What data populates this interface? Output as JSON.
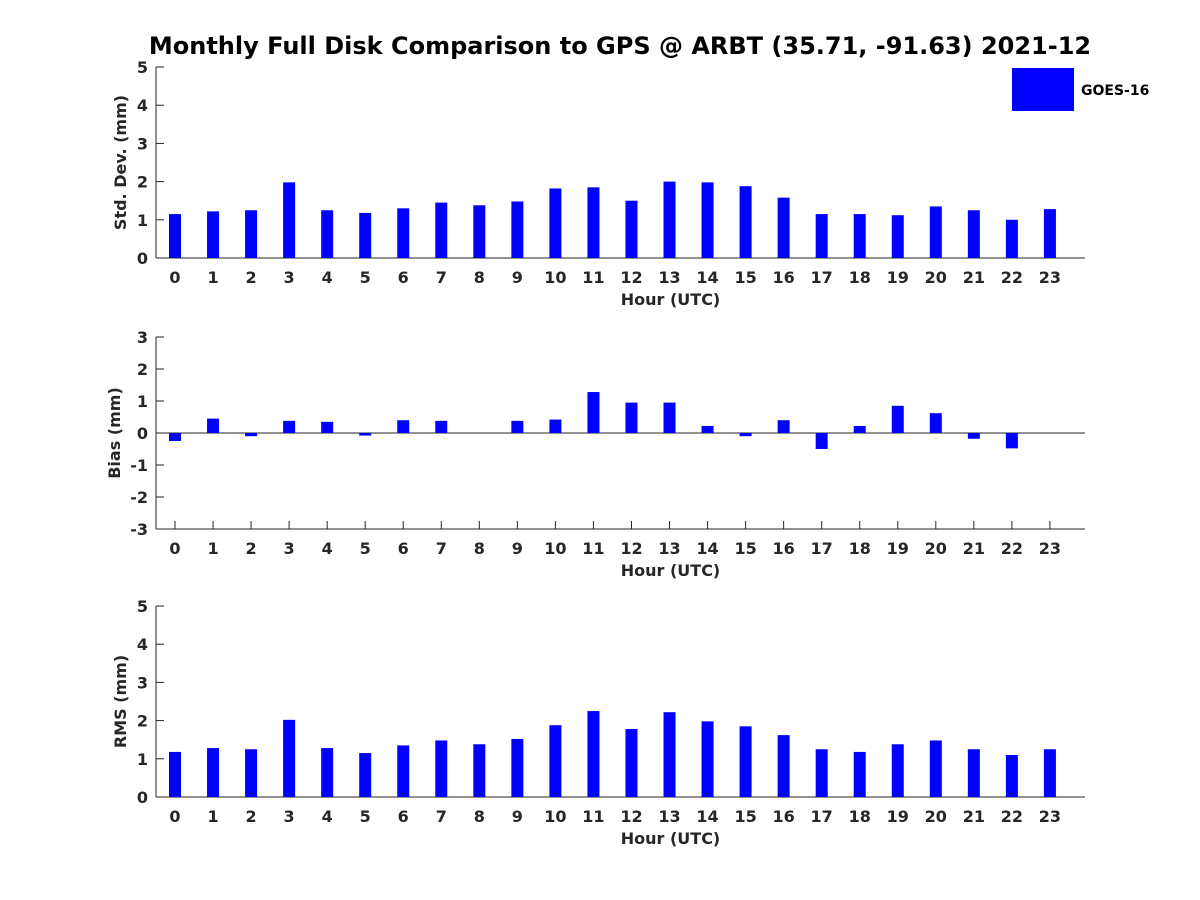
{
  "title": "Monthly Full Disk Comparison to GPS @ ARBT (35.71, -91.63) 2021-12",
  "legend": {
    "label": "GOES-16",
    "color": "#0000ff"
  },
  "chart_data": [
    {
      "type": "bar",
      "name": "std-dev",
      "title": "",
      "xlabel": "Hour (UTC)",
      "ylabel": "Std. Dev. (mm)",
      "ylim": [
        0,
        5
      ],
      "yticks": [
        0,
        1,
        2,
        3,
        4,
        5
      ],
      "categories": [
        "0",
        "1",
        "2",
        "3",
        "4",
        "5",
        "6",
        "7",
        "8",
        "9",
        "10",
        "11",
        "12",
        "13",
        "14",
        "15",
        "16",
        "17",
        "18",
        "19",
        "20",
        "21",
        "22",
        "23"
      ],
      "series": [
        {
          "name": "GOES-16",
          "color": "#0000ff",
          "values": [
            1.15,
            1.22,
            1.25,
            1.98,
            1.25,
            1.18,
            1.3,
            1.45,
            1.38,
            1.48,
            1.82,
            1.85,
            1.5,
            2.0,
            1.98,
            1.88,
            1.58,
            1.15,
            1.15,
            1.12,
            1.35,
            1.25,
            1.0,
            1.28
          ]
        }
      ]
    },
    {
      "type": "bar",
      "name": "bias",
      "title": "",
      "xlabel": "Hour (UTC)",
      "ylabel": "Bias (mm)",
      "ylim": [
        -3,
        3
      ],
      "yticks": [
        -3,
        -2,
        -1,
        0,
        1,
        2,
        3
      ],
      "categories": [
        "0",
        "1",
        "2",
        "3",
        "4",
        "5",
        "6",
        "7",
        "8",
        "9",
        "10",
        "11",
        "12",
        "13",
        "14",
        "15",
        "16",
        "17",
        "18",
        "19",
        "20",
        "21",
        "22",
        "23"
      ],
      "series": [
        {
          "name": "GOES-16",
          "color": "#0000ff",
          "values": [
            -0.25,
            0.45,
            -0.1,
            0.38,
            0.35,
            -0.08,
            0.4,
            0.38,
            0.0,
            0.38,
            0.42,
            1.28,
            0.95,
            0.95,
            0.22,
            -0.1,
            0.4,
            -0.5,
            0.22,
            0.85,
            0.62,
            -0.18,
            -0.48,
            0.0
          ]
        }
      ]
    },
    {
      "type": "bar",
      "name": "rms",
      "title": "",
      "xlabel": "Hour (UTC)",
      "ylabel": "RMS (mm)",
      "ylim": [
        0,
        5
      ],
      "yticks": [
        0,
        1,
        2,
        3,
        4,
        5
      ],
      "categories": [
        "0",
        "1",
        "2",
        "3",
        "4",
        "5",
        "6",
        "7",
        "8",
        "9",
        "10",
        "11",
        "12",
        "13",
        "14",
        "15",
        "16",
        "17",
        "18",
        "19",
        "20",
        "21",
        "22",
        "23"
      ],
      "series": [
        {
          "name": "GOES-16",
          "color": "#0000ff",
          "values": [
            1.18,
            1.28,
            1.25,
            2.02,
            1.28,
            1.15,
            1.35,
            1.48,
            1.38,
            1.52,
            1.88,
            2.25,
            1.78,
            2.22,
            1.98,
            1.85,
            1.62,
            1.25,
            1.18,
            1.38,
            1.48,
            1.25,
            1.1,
            1.25
          ]
        }
      ]
    }
  ]
}
